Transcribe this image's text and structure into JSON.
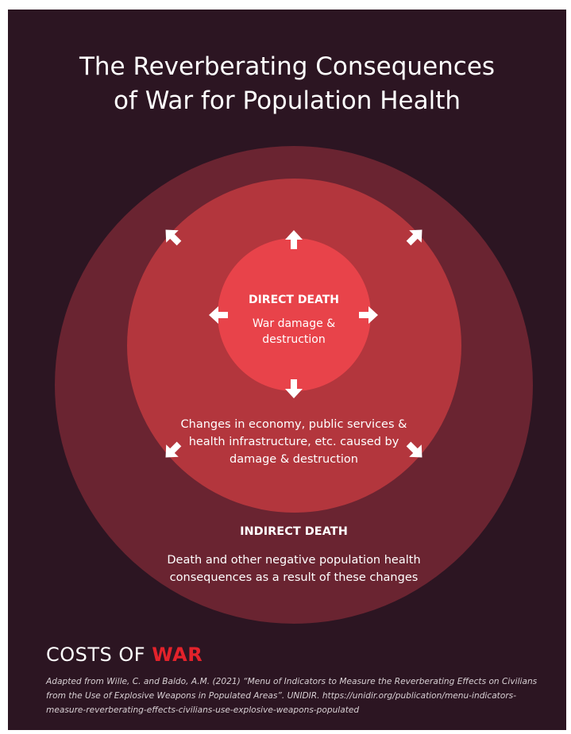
{
  "title": {
    "line1": "The Reverberating Consequences",
    "line2": "of War for Population Health"
  },
  "diagram": {
    "inner": {
      "heading": "DIRECT DEATH",
      "description": "War damage & destruction"
    },
    "middle": {
      "description": "Changes in economy, public services & health infrastructure, etc. caused by damage & destruction"
    },
    "outer": {
      "heading": "INDIRECT DEATH",
      "description": "Death and other negative population health consequences as a result of these changes"
    }
  },
  "brand": {
    "part1": "COSTS OF ",
    "part2": "WAR"
  },
  "citation": "Adapted from Wille, C. and Baldo, A.M. (2021) “Menu of Indicators to Measure the Reverberating Effects on Civilians from the Use of Explosive Weapons in Populated Areas”. UNIDIR. https://unidir.org/publication/menu-indicators-measure-reverberating-effects-civilians-use-explosive-weapons-populated",
  "colors": {
    "background": "#2c1522",
    "outer_circle": "#6a2431",
    "middle_circle": "#b3363d",
    "inner_circle": "#e8434a",
    "brand_accent": "#e3222b"
  },
  "icons": [
    "arrow-up-icon",
    "arrow-down-icon",
    "arrow-left-icon",
    "arrow-right-icon",
    "arrow-up-left-icon",
    "arrow-up-right-icon",
    "arrow-down-left-icon",
    "arrow-down-right-icon"
  ]
}
